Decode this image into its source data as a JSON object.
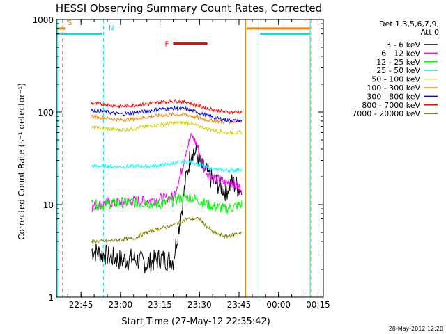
{
  "chart_data": {
    "type": "line",
    "title": "HESSI Observing Summary Count Rates, Corrected",
    "xlabel": "Start Time (27-May-12 22:35:42)",
    "ylabel": "Corrected Count Rate (s⁻¹ detector⁻¹)",
    "yscale": "log",
    "ylim": [
      1,
      1000
    ],
    "xlim": [
      "22:35:42",
      "00:17:00"
    ],
    "yticks": [
      "1",
      "10",
      "100",
      "1000"
    ],
    "xticks": [
      "22:45",
      "23:00",
      "23:15",
      "23:30",
      "23:45",
      "00:00",
      "00:15"
    ],
    "timestamp": "28-May-2012 12:20",
    "legend": {
      "header_line1": "Det 1,3,5,6,7,9,",
      "header_line2": "Att 0",
      "position": "right"
    },
    "bars": {
      "S": {
        "label": "S",
        "color": "#ff8000",
        "start": "22:35:42",
        "end": "22:39:00",
        "level": 800
      },
      "N": {
        "label": "N",
        "color": "#00e0e0",
        "start": "22:35:42",
        "end": "22:53:00",
        "level": 700
      },
      "F": {
        "label": "F",
        "color": "#ff0000",
        "start": "23:20:00",
        "end": "23:33:00",
        "level": 550
      },
      "S2": {
        "color": "#ff8000",
        "start": "23:48:00",
        "end": "00:12:00",
        "level": 800
      },
      "N2": {
        "color": "#00e0e0",
        "start": "23:53:00",
        "end": "00:12:00",
        "level": 700
      }
    },
    "vlines": [
      {
        "time": "22:38:00",
        "color": "#ff8000",
        "style": "dashed"
      },
      {
        "time": "22:53:30",
        "color": "#00e0e0",
        "style": "dashed"
      },
      {
        "time": "23:47:30",
        "color": "#ff8000",
        "style": "solid"
      },
      {
        "time": "23:52:30",
        "color": "#00e0e0",
        "style": "solid"
      },
      {
        "time": "00:12:30",
        "color": "#ff8000",
        "style": "dashed"
      },
      {
        "time": "22:36:00",
        "color": "#00e0e0",
        "style": "solid"
      },
      {
        "time": "00:12:00",
        "color": "#00e0e0",
        "style": "solid"
      }
    ],
    "series": [
      {
        "name": "3 - 6 keV",
        "color": "#000000",
        "x": [
          "22:49",
          "22:55",
          "23:00",
          "23:05",
          "23:10",
          "23:15",
          "23:20",
          "23:23",
          "23:25",
          "23:27",
          "23:29",
          "23:31",
          "23:33",
          "23:35",
          "23:38",
          "23:40",
          "23:42",
          "23:44",
          "23:46"
        ],
        "y": [
          3.2,
          2.8,
          2.5,
          2.6,
          2.3,
          2.6,
          2.5,
          8,
          20,
          40,
          35,
          25,
          22,
          18,
          16,
          14,
          17,
          16,
          14
        ]
      },
      {
        "name": "6 - 12 keV",
        "color": "#ff00ff",
        "x": [
          "22:49",
          "22:55",
          "23:00",
          "23:05",
          "23:10",
          "23:15",
          "23:20",
          "23:23",
          "23:25",
          "23:27",
          "23:29",
          "23:31",
          "23:33",
          "23:35",
          "23:38",
          "23:40",
          "23:42",
          "23:44",
          "23:46"
        ],
        "y": [
          9.5,
          10.5,
          10.5,
          11,
          11,
          11.5,
          12,
          22,
          40,
          55,
          45,
          28,
          22,
          20,
          18,
          17,
          18,
          16,
          15
        ]
      },
      {
        "name": "12 - 25 keV",
        "color": "#00ff00",
        "x": [
          "22:49",
          "22:55",
          "23:00",
          "23:05",
          "23:10",
          "23:15",
          "23:20",
          "23:24",
          "23:27",
          "23:30",
          "23:33",
          "23:36",
          "23:40",
          "23:43",
          "23:46"
        ],
        "y": [
          10,
          10,
          10.5,
          10.5,
          10.5,
          10,
          11,
          12,
          12,
          11,
          10,
          9.5,
          9,
          9.5,
          10
        ]
      },
      {
        "name": "25 - 50 keV",
        "color": "#00ffff",
        "x": [
          "22:49",
          "22:55",
          "23:00",
          "23:05",
          "23:10",
          "23:15",
          "23:20",
          "23:24",
          "23:27",
          "23:30",
          "23:33",
          "23:36",
          "23:40",
          "23:43",
          "23:46"
        ],
        "y": [
          26,
          26,
          25.5,
          26,
          26,
          26.5,
          28,
          29,
          29,
          27,
          25,
          24,
          23.5,
          23.5,
          24
        ]
      },
      {
        "name": "50 - 100 keV",
        "color": "#d0d000",
        "x": [
          "22:49",
          "22:55",
          "23:00",
          "23:05",
          "23:10",
          "23:15",
          "23:20",
          "23:25",
          "23:30",
          "23:35",
          "23:40",
          "23:46"
        ],
        "y": [
          68,
          66,
          64,
          66,
          70,
          73,
          76,
          77,
          70,
          64,
          60,
          60
        ]
      },
      {
        "name": "100 - 300 keV",
        "color": "#ff8000",
        "x": [
          "22:49",
          "22:55",
          "23:00",
          "23:05",
          "23:10",
          "23:15",
          "23:20",
          "23:25",
          "23:30",
          "23:35",
          "23:40",
          "23:46"
        ],
        "y": [
          90,
          86,
          82,
          84,
          88,
          92,
          94,
          94,
          86,
          80,
          78,
          80
        ]
      },
      {
        "name": "300 - 800 keV",
        "color": "#0000ff",
        "x": [
          "22:49",
          "22:55",
          "23:00",
          "23:05",
          "23:10",
          "23:15",
          "23:20",
          "23:25",
          "23:30",
          "23:35",
          "23:40",
          "23:46"
        ],
        "y": [
          105,
          100,
          95,
          98,
          102,
          108,
          110,
          108,
          98,
          88,
          82,
          80
        ]
      },
      {
        "name": "800 - 7000 keV",
        "color": "#ff0000",
        "x": [
          "22:49",
          "22:55",
          "23:00",
          "23:05",
          "23:10",
          "23:15",
          "23:20",
          "23:25",
          "23:30",
          "23:35",
          "23:40",
          "23:46"
        ],
        "y": [
          125,
          120,
          115,
          118,
          122,
          128,
          132,
          128,
          116,
          106,
          100,
          100
        ]
      },
      {
        "name": "7000 - 20000 keV",
        "color": "#808000",
        "x": [
          "22:49",
          "22:55",
          "23:00",
          "23:05",
          "23:10",
          "23:15",
          "23:20",
          "23:25",
          "23:30",
          "23:35",
          "23:40",
          "23:46"
        ],
        "y": [
          4,
          4,
          4.2,
          4.3,
          5,
          5.5,
          6,
          7,
          7,
          5,
          4.5,
          5
        ]
      }
    ]
  }
}
